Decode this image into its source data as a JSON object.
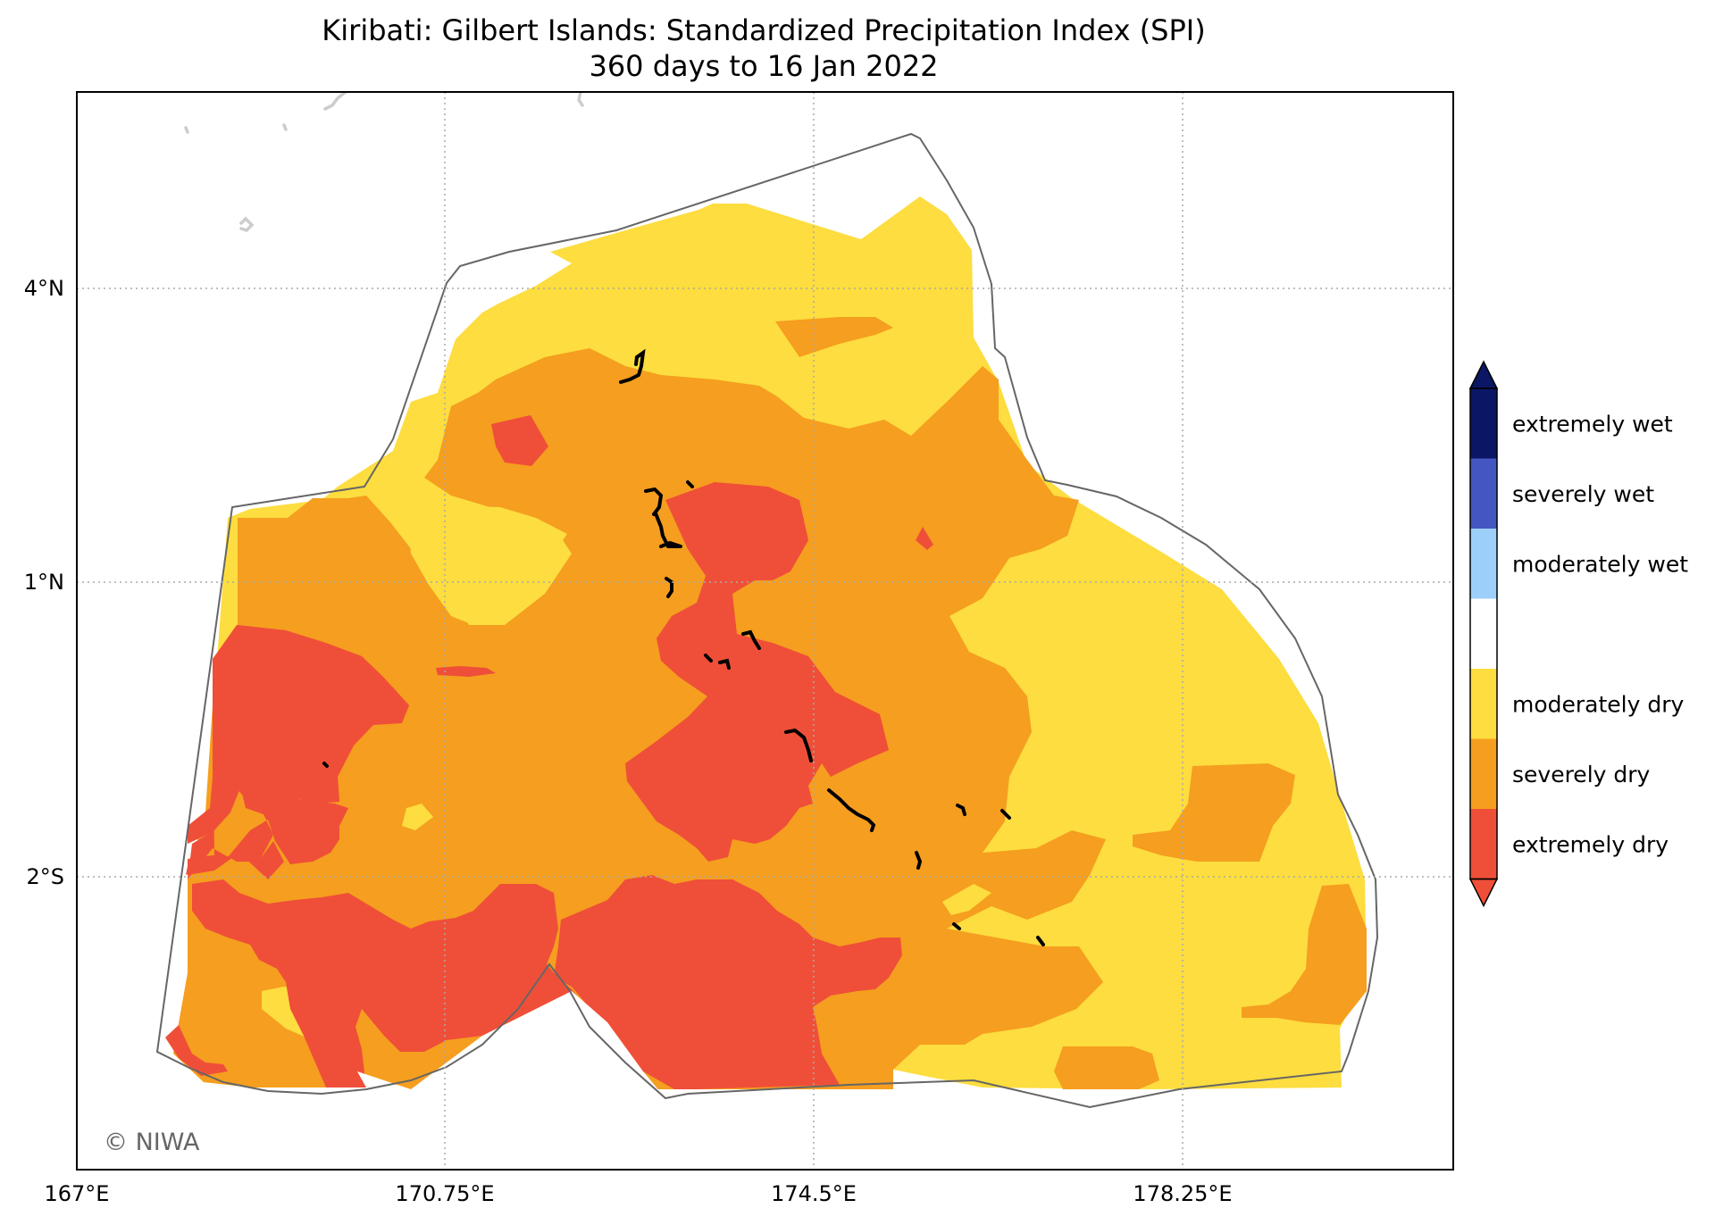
{
  "title": {
    "line1": "Kiribati: Gilbert Islands: Standardized Precipitation Index (SPI)",
    "line2": "360 days to 16 Jan 2022"
  },
  "axes": {
    "x_ticks": [
      "167°E",
      "170.75°E",
      "174.5°E",
      "178.25°E"
    ],
    "y_ticks": [
      "4°N",
      "1°N",
      "2°S"
    ],
    "gridlines": true
  },
  "legend": {
    "categories": [
      {
        "label": "extremely wet",
        "color": "#0b1764"
      },
      {
        "label": "severely wet",
        "color": "#4456c2"
      },
      {
        "label": "moderately wet",
        "color": "#9dcffb"
      },
      {
        "label": "",
        "color": "#ffffff"
      },
      {
        "label": "moderately dry",
        "color": "#fddd3f"
      },
      {
        "label": "severely dry",
        "color": "#f59e1f"
      },
      {
        "label": "extremely dry",
        "color": "#ef4f38"
      }
    ],
    "extend_top_color": "#0b1764",
    "extend_bottom_color": "#ef4f38"
  },
  "credit": "© NIWA",
  "colors": {
    "moderately_dry": "#fddd3f",
    "severely_dry": "#f59e1f",
    "extremely_dry": "#ef4f38",
    "boundary": "#666666",
    "islands": "#000000",
    "coastline_outside": "#cccccc"
  }
}
